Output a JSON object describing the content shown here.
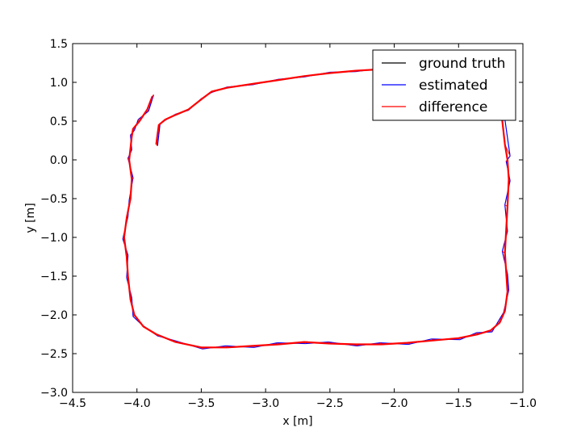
{
  "chart_data": {
    "type": "line",
    "title": "",
    "xlabel": "x [m]",
    "ylabel": "y [m]",
    "xlim": [
      -4.5,
      -1.0
    ],
    "ylim": [
      -3.0,
      1.5
    ],
    "xticks": [
      -4.5,
      -4.0,
      -3.5,
      -3.0,
      -2.5,
      -2.0,
      -1.5,
      -1.0
    ],
    "xtick_labels": [
      "−4.5",
      "−4.0",
      "−3.5",
      "−3.0",
      "−2.5",
      "−2.0",
      "−1.5",
      "−1.0"
    ],
    "yticks": [
      -3.0,
      -2.5,
      -2.0,
      -1.5,
      -1.0,
      -0.5,
      0.0,
      0.5,
      1.0,
      1.5
    ],
    "ytick_labels": [
      "−3.0",
      "−2.5",
      "−2.0",
      "−1.5",
      "−1.0",
      "−0.5",
      "0.0",
      "0.5",
      "1.0",
      "1.5"
    ],
    "grid": false,
    "legend_position": "top-right",
    "colors": {
      "ground_truth": "#000000",
      "estimated": "#0000ff",
      "difference": "#ff0000"
    },
    "series": [
      {
        "name": "ground truth",
        "x": [
          -3.85,
          -3.83,
          -3.78,
          -3.7,
          -3.6,
          -3.5,
          -3.42,
          -3.3,
          -3.1,
          -2.9,
          -2.7,
          -2.5,
          -2.3,
          -2.1,
          -1.9,
          -1.7,
          -1.5,
          -1.3,
          -1.2,
          -1.16,
          -1.14,
          -1.12,
          -1.11,
          -1.12,
          -1.13,
          -1.14,
          -1.13,
          -1.12,
          -1.14,
          -1.18,
          -1.25,
          -1.35,
          -1.5,
          -1.7,
          -1.9,
          -2.1,
          -2.3,
          -2.5,
          -2.7,
          -2.9,
          -3.1,
          -3.3,
          -3.5,
          -3.7,
          -3.85,
          -3.95,
          -4.02,
          -4.05,
          -4.07,
          -4.08,
          -4.1,
          -4.08,
          -4.05,
          -4.04,
          -4.06,
          -4.05,
          -4.04,
          -4.03,
          -3.98,
          -3.92,
          -3.88
        ],
        "y": [
          0.2,
          0.45,
          0.52,
          0.58,
          0.65,
          0.78,
          0.88,
          0.93,
          0.98,
          1.03,
          1.08,
          1.12,
          1.15,
          1.17,
          1.18,
          1.15,
          1.08,
          0.95,
          0.75,
          0.5,
          0.2,
          0.0,
          -0.25,
          -0.6,
          -0.9,
          -1.2,
          -1.45,
          -1.7,
          -1.95,
          -2.1,
          -2.2,
          -2.25,
          -2.3,
          -2.33,
          -2.36,
          -2.38,
          -2.38,
          -2.37,
          -2.35,
          -2.38,
          -2.4,
          -2.42,
          -2.42,
          -2.35,
          -2.25,
          -2.15,
          -2.0,
          -1.8,
          -1.5,
          -1.25,
          -1.0,
          -0.75,
          -0.5,
          -0.25,
          0.0,
          0.15,
          0.3,
          0.4,
          0.5,
          0.65,
          0.82
        ]
      },
      {
        "name": "estimated",
        "x": [
          -3.84,
          -3.82,
          -3.78,
          -3.7,
          -3.6,
          -3.5,
          -3.42,
          -3.3,
          -3.1,
          -2.9,
          -2.7,
          -2.5,
          -2.3,
          -2.1,
          -1.9,
          -1.7,
          -1.5,
          -1.3,
          -1.2,
          -1.14,
          -1.1,
          -1.13,
          -1.1,
          -1.14,
          -1.12,
          -1.16,
          -1.12,
          -1.11,
          -1.15,
          -1.19,
          -1.24,
          -1.36,
          -1.49,
          -1.71,
          -1.89,
          -2.11,
          -2.29,
          -2.51,
          -2.69,
          -2.91,
          -3.09,
          -3.31,
          -3.49,
          -3.71,
          -3.84,
          -3.96,
          -4.03,
          -4.04,
          -4.08,
          -4.07,
          -4.11,
          -4.07,
          -4.06,
          -4.03,
          -4.07,
          -4.04,
          -4.05,
          -4.02,
          -3.99,
          -3.91,
          -3.87
        ],
        "y": [
          0.18,
          0.47,
          0.51,
          0.59,
          0.64,
          0.79,
          0.87,
          0.94,
          0.97,
          1.04,
          1.07,
          1.13,
          1.14,
          1.18,
          1.17,
          1.16,
          1.07,
          0.96,
          0.74,
          0.52,
          0.05,
          -0.02,
          -0.27,
          -0.58,
          -0.92,
          -1.18,
          -1.47,
          -1.68,
          -1.97,
          -2.08,
          -2.22,
          -2.23,
          -2.32,
          -2.31,
          -2.38,
          -2.36,
          -2.4,
          -2.35,
          -2.37,
          -2.36,
          -2.42,
          -2.4,
          -2.44,
          -2.33,
          -2.27,
          -2.13,
          -2.02,
          -1.78,
          -1.52,
          -1.23,
          -1.02,
          -0.73,
          -0.52,
          -0.23,
          0.02,
          0.13,
          0.32,
          0.38,
          0.52,
          0.63,
          0.84
        ]
      }
    ]
  },
  "legend": {
    "ground_truth": "ground truth",
    "estimated": "estimated",
    "difference": "difference"
  }
}
